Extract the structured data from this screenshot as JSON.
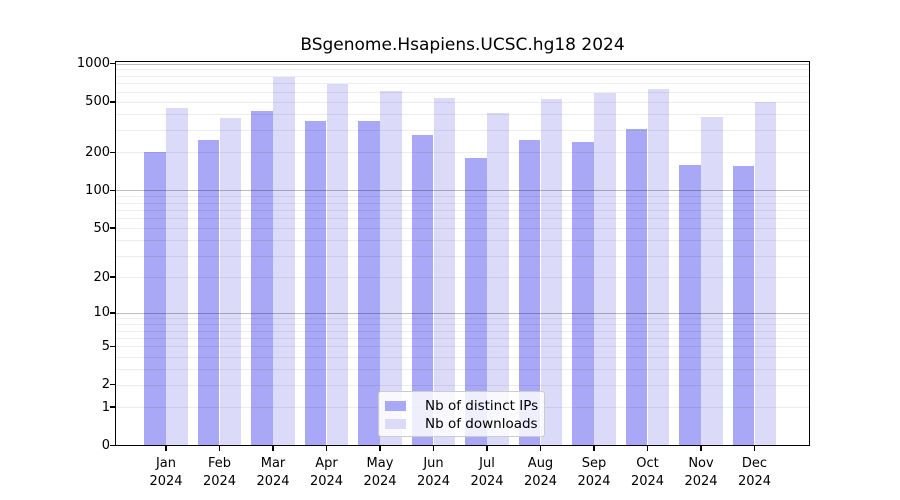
{
  "chart_data": {
    "type": "bar",
    "title": "BSgenome.Hsapiens.UCSC.hg18 2024",
    "categories": [
      "Jan 2024",
      "Feb 2024",
      "Mar 2024",
      "Apr 2024",
      "May 2024",
      "Jun 2024",
      "Jul 2024",
      "Aug 2024",
      "Sep 2024",
      "Oct 2024",
      "Nov 2024",
      "Dec 2024"
    ],
    "series": [
      {
        "name": "Nb of distinct IPs",
        "color": "#a8a8f6",
        "values": [
          200,
          250,
          420,
          355,
          350,
          275,
          180,
          250,
          240,
          305,
          160,
          155
        ]
      },
      {
        "name": "Nb of downloads",
        "color": "#dbdbf9",
        "values": [
          445,
          375,
          780,
          685,
          610,
          540,
          410,
          525,
          585,
          625,
          380,
          500
        ]
      }
    ],
    "yscale": "log10(1+x)",
    "ylim": [
      0,
      1000
    ],
    "yticks": [
      0,
      1,
      2,
      5,
      10,
      20,
      50,
      100,
      200,
      500,
      1000
    ],
    "minor_grid_values": [
      1,
      2,
      3,
      4,
      5,
      6,
      7,
      8,
      9,
      20,
      30,
      40,
      50,
      60,
      70,
      80,
      90,
      200,
      300,
      400,
      500,
      600,
      700,
      800,
      900
    ],
    "major_grid_values": [
      10,
      100,
      1000
    ],
    "grid": "horizontal, minor + major, drawn over bars",
    "legend_position": "inside bottom-center",
    "xlabel": "",
    "ylabel": ""
  },
  "legend": {
    "items": [
      {
        "label": "Nb of distinct IPs"
      },
      {
        "label": "Nb of downloads"
      }
    ]
  }
}
